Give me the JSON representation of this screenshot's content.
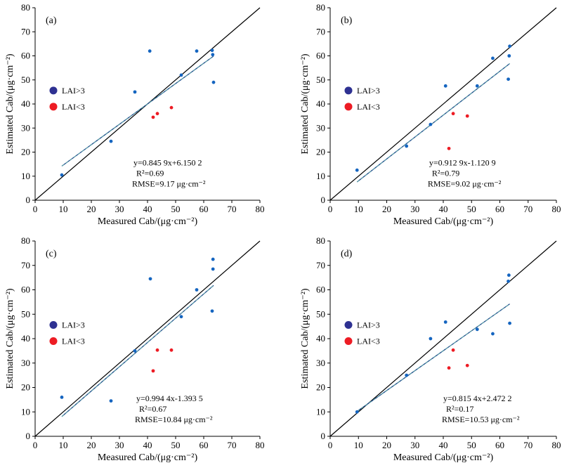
{
  "chart_data": [
    {
      "type": "scatter",
      "panel_label": "(a)",
      "xlabel": "Measured Cab/(μg·cm⁻²)",
      "ylabel": "Estimated Cab/(μg·cm⁻²)",
      "xlim": [
        0,
        80
      ],
      "ylim": [
        0,
        80
      ],
      "xticks": [
        "0",
        "10",
        "20",
        "30",
        "40",
        "50",
        "60",
        "70",
        "80"
      ],
      "yticks": [
        "0",
        "10",
        "20",
        "30",
        "40",
        "50",
        "60",
        "70",
        "80"
      ],
      "legend": [
        {
          "name": "LAI>3",
          "color": "#2e3192"
        },
        {
          "name": "LAI<3",
          "color": "#ed1c24"
        }
      ],
      "series": [
        {
          "name": "LAI>3",
          "points": [
            [
              9.5,
              10.5
            ],
            [
              27,
              24.5
            ],
            [
              35.5,
              45
            ],
            [
              40.8,
              62
            ],
            [
              52,
              52
            ],
            [
              57.5,
              62
            ],
            [
              63,
              62.3
            ],
            [
              63.2,
              60.5
            ],
            [
              63.5,
              49
            ]
          ]
        },
        {
          "name": "LAI<3",
          "points": [
            [
              42,
              34.5
            ],
            [
              43.5,
              36
            ],
            [
              48.5,
              38.5
            ]
          ]
        }
      ],
      "equation": "y=0.845 9x+6.150 2",
      "r2": "R²=0.69",
      "rmse": "RMSE=9.17 μg·cm⁻²",
      "fit_line": [
        [
          9.5,
          14.2
        ],
        [
          63.5,
          59.9
        ]
      ],
      "one_to_one": [
        [
          0,
          0
        ],
        [
          80,
          80
        ]
      ]
    },
    {
      "type": "scatter",
      "panel_label": "(b)",
      "xlabel": "Measured Cab/(μg·cm⁻²)",
      "ylabel": "Estimated Cab/(μg·cm⁻²)",
      "xlim": [
        0,
        80
      ],
      "ylim": [
        0,
        80
      ],
      "xticks": [
        "0",
        "10",
        "20",
        "30",
        "40",
        "50",
        "60",
        "70",
        "80"
      ],
      "yticks": [
        "0",
        "10",
        "20",
        "30",
        "40",
        "50",
        "60",
        "70",
        "80"
      ],
      "legend": [
        {
          "name": "LAI>3",
          "color": "#2e3192"
        },
        {
          "name": "LAI<3",
          "color": "#ed1c24"
        }
      ],
      "series": [
        {
          "name": "LAI>3",
          "points": [
            [
              9.5,
              12.5
            ],
            [
              27,
              22.5
            ],
            [
              35.5,
              31.5
            ],
            [
              40.8,
              47.5
            ],
            [
              52,
              47.5
            ],
            [
              57.5,
              59
            ],
            [
              63,
              50.3
            ],
            [
              63.3,
              60
            ],
            [
              63.5,
              64
            ]
          ]
        },
        {
          "name": "LAI<3",
          "points": [
            [
              42,
              21.5
            ],
            [
              43.5,
              36
            ],
            [
              48.5,
              35
            ]
          ]
        }
      ],
      "equation": "y=0.912 9x-1.120 9",
      "r2": "R²=0.79",
      "rmse": "RMSE=9.02 μg·cm⁻²",
      "fit_line": [
        [
          9.5,
          7.6
        ],
        [
          63.5,
          56.8
        ]
      ],
      "one_to_one": [
        [
          0,
          0
        ],
        [
          80,
          80
        ]
      ]
    },
    {
      "type": "scatter",
      "panel_label": "(c)",
      "xlabel": "Measured Cab/(μg·cm⁻²)",
      "ylabel": "Estimated Cab/(μg·cm⁻²)",
      "xlim": [
        0,
        80
      ],
      "ylim": [
        0,
        80
      ],
      "xticks": [
        "0",
        "10",
        "20",
        "30",
        "40",
        "50",
        "60",
        "70",
        "80"
      ],
      "yticks": [
        "0",
        "10",
        "20",
        "30",
        "40",
        "50",
        "60",
        "70",
        "80"
      ],
      "legend": [
        {
          "name": "LAI>3",
          "color": "#2e3192"
        },
        {
          "name": "LAI<3",
          "color": "#ed1c24"
        }
      ],
      "series": [
        {
          "name": "LAI>3",
          "points": [
            [
              9.5,
              16
            ],
            [
              27,
              14.5
            ],
            [
              35.5,
              35
            ],
            [
              41,
              64.5
            ],
            [
              52,
              49
            ],
            [
              57.5,
              60
            ],
            [
              63,
              51.3
            ],
            [
              63.3,
              68.5
            ],
            [
              63.3,
              72.5
            ]
          ]
        },
        {
          "name": "LAI<3",
          "points": [
            [
              42,
              26.8
            ],
            [
              43.5,
              35.3
            ],
            [
              48.5,
              35.3
            ]
          ]
        }
      ],
      "equation": "y=0.994 4x-1.393 5",
      "r2": "R²=0.67",
      "rmse": "RMSE=10.84 μg·cm⁻²",
      "fit_line": [
        [
          9.5,
          8.1
        ],
        [
          63.5,
          61.8
        ]
      ],
      "one_to_one": [
        [
          0,
          0
        ],
        [
          80,
          80
        ]
      ]
    },
    {
      "type": "scatter",
      "panel_label": "(d)",
      "xlabel": "Measured Cab/(μg·cm⁻²)",
      "ylabel": "Estimated Cab/(μg·cm⁻²)",
      "xlim": [
        0,
        80
      ],
      "ylim": [
        0,
        80
      ],
      "xticks": [
        "0",
        "10",
        "20",
        "30",
        "40",
        "50",
        "60",
        "70",
        "80"
      ],
      "yticks": [
        "0",
        "10",
        "20",
        "30",
        "40",
        "50",
        "60",
        "70",
        "80"
      ],
      "legend": [
        {
          "name": "LAI>3",
          "color": "#2e3192"
        },
        {
          "name": "LAI<3",
          "color": "#ed1c24"
        }
      ],
      "series": [
        {
          "name": "LAI>3",
          "points": [
            [
              9.5,
              10
            ],
            [
              27,
              25
            ],
            [
              35.5,
              40
            ],
            [
              40.8,
              46.8
            ],
            [
              52,
              43.8
            ],
            [
              57.5,
              42
            ],
            [
              63,
              63.5
            ],
            [
              63.2,
              66
            ],
            [
              63.5,
              46.3
            ]
          ]
        },
        {
          "name": "LAI<3",
          "points": [
            [
              42,
              28
            ],
            [
              43.5,
              35.3
            ],
            [
              48.5,
              29
            ]
          ]
        }
      ],
      "equation": "y=0.815 4x+2.472 2",
      "r2": "R²=0.17",
      "rmse": "RMSE=10.53 μg·cm⁻²",
      "fit_line": [
        [
          9.5,
          10.2
        ],
        [
          63.5,
          54.2
        ]
      ],
      "one_to_one": [
        [
          0,
          0
        ],
        [
          80,
          80
        ]
      ]
    }
  ]
}
